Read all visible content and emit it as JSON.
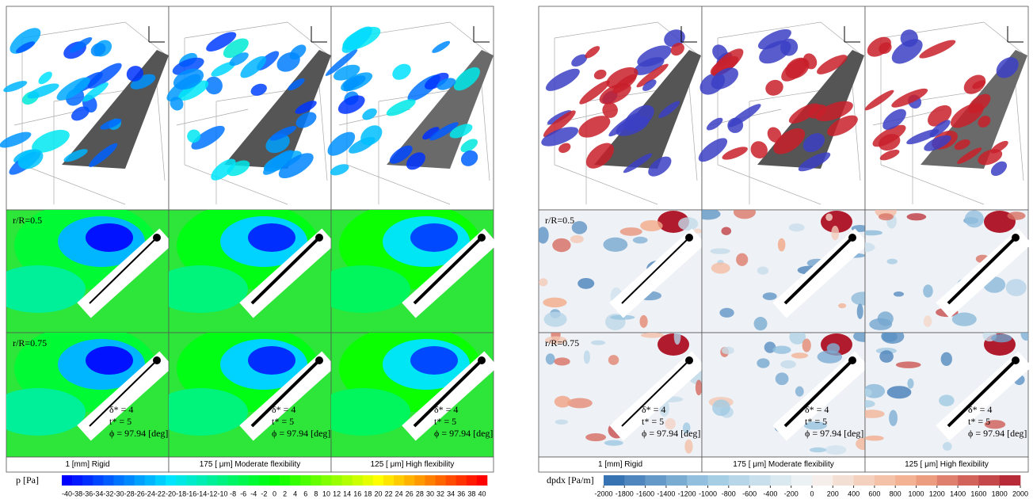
{
  "panels": [
    {
      "row_labels": [
        "r/R=0.5",
        "r/R=0.75"
      ],
      "annotations": [
        "δ* = 4",
        "t* = 5",
        "ϕ = 97.94 [deg]"
      ],
      "columns": [
        "1 [mm] Rigid",
        "175 [ μm] Moderate flexibility",
        "125 [ μm] High flexibility"
      ],
      "colorbar": {
        "label": "p [Pa]",
        "colors": [
          "#0000ff",
          "#00e5ff",
          "#00ff00",
          "#ffff00",
          "#ff0000"
        ],
        "ticks": [
          -40,
          -38,
          -36,
          -34,
          -32,
          -30,
          -28,
          -26,
          -24,
          -22,
          -20,
          -18,
          -16,
          -14,
          -12,
          -10,
          -8,
          -6,
          -4,
          -2,
          0,
          2,
          4,
          6,
          8,
          10,
          12,
          14,
          16,
          18,
          20,
          22,
          24,
          26,
          28,
          30,
          32,
          34,
          36,
          38,
          40
        ]
      }
    },
    {
      "row_labels": [
        "r/R=0.5",
        "r/R=0.75"
      ],
      "annotations": [
        "δ* = 4",
        "t* = 5",
        "ϕ = 97.94 [deg]"
      ],
      "columns": [
        "1 [mm] Rigid",
        "175 [ μm] Moderate flexibility",
        "125 [ μm] High flexibility"
      ],
      "colorbar": {
        "label": "dpdx [Pa/m]",
        "colors": [
          "#2c6aad",
          "#9cc8e2",
          "#f5f5f5",
          "#f3aa88",
          "#b01c2e"
        ],
        "ticks": [
          -2000,
          -1800,
          -1600,
          -1400,
          -1200,
          -1000,
          -800,
          -600,
          -400,
          -200,
          0,
          200,
          400,
          600,
          800,
          1000,
          1200,
          1400,
          1600,
          1800,
          2000
        ]
      }
    }
  ]
}
